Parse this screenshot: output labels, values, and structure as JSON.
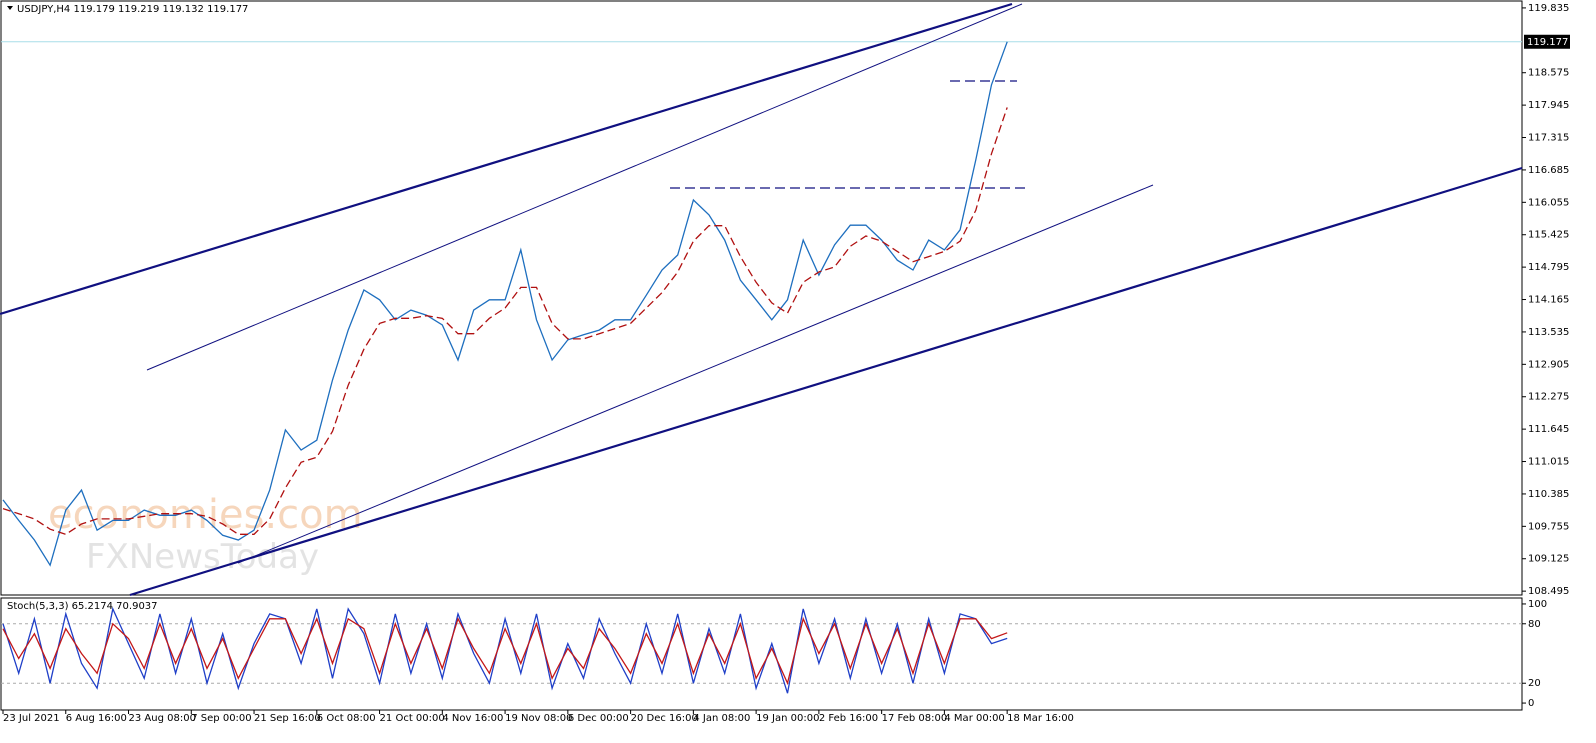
{
  "chart_data": [
    {
      "type": "line",
      "title": "USDJPY,H4  119.179 119.219 119.132 119.177",
      "watermark": [
        "economies.com",
        "FXNewsToday"
      ],
      "categories": [
        "23 Jul 2021",
        null,
        null,
        null,
        "6 Aug 16:00",
        null,
        null,
        null,
        "23 Aug 08:00",
        null,
        null,
        null,
        "7 Sep 00:00",
        null,
        null,
        null,
        "21 Sep 16:00",
        null,
        null,
        null,
        "6 Oct 08:00",
        null,
        null,
        null,
        "21 Oct 00:00",
        null,
        null,
        null,
        "4 Nov 16:00",
        null,
        null,
        null,
        "19 Nov 08:00",
        null,
        null,
        null,
        "6 Dec 00:00",
        null,
        null,
        null,
        "20 Dec 16:00",
        null,
        null,
        null,
        "4 Jan 08:00",
        null,
        null,
        null,
        "19 Jan 00:00",
        null,
        null,
        null,
        "2 Feb 16:00",
        null,
        null,
        null,
        "17 Feb 08:00",
        null,
        null,
        null,
        "4 Mar 00:00",
        null,
        null,
        null,
        "18 Mar 16:00"
      ],
      "series": [
        {
          "color": "#1e6fbf",
          "values": [
            110.27,
            109.87,
            109.49,
            109.0,
            110.07,
            110.46,
            109.68,
            109.87,
            109.87,
            110.07,
            109.97,
            109.97,
            110.07,
            109.87,
            109.58,
            109.49,
            109.68,
            110.46,
            111.63,
            111.24,
            111.43,
            112.6,
            113.57,
            114.35,
            114.16,
            113.77,
            113.96,
            113.86,
            113.67,
            112.99,
            113.96,
            114.16,
            114.16,
            115.13,
            113.77,
            112.99,
            113.38,
            113.48,
            113.57,
            113.77,
            113.77,
            114.25,
            114.74,
            115.03,
            116.1,
            115.81,
            115.32,
            114.54,
            114.16,
            113.77,
            114.16,
            115.32,
            114.64,
            115.23,
            115.61,
            115.61,
            115.32,
            114.93,
            114.74,
            115.32,
            115.13,
            115.52,
            116.88,
            118.34,
            119.177
          ]
        },
        {
          "color": "#b01010",
          "dashed": true,
          "values": [
            110.1,
            110.0,
            109.9,
            109.7,
            109.6,
            109.8,
            109.9,
            109.9,
            109.9,
            109.95,
            110.0,
            110.0,
            110.0,
            109.95,
            109.8,
            109.6,
            109.6,
            109.9,
            110.5,
            111.0,
            111.1,
            111.6,
            112.5,
            113.2,
            113.7,
            113.8,
            113.8,
            113.85,
            113.8,
            113.5,
            113.5,
            113.8,
            114.0,
            114.4,
            114.4,
            113.7,
            113.4,
            113.4,
            113.5,
            113.6,
            113.7,
            114.0,
            114.3,
            114.7,
            115.3,
            115.6,
            115.6,
            115.0,
            114.5,
            114.1,
            113.9,
            114.5,
            114.7,
            114.8,
            115.2,
            115.4,
            115.3,
            115.1,
            114.9,
            115.0,
            115.1,
            115.3,
            115.9,
            117.0,
            117.9
          ]
        }
      ],
      "last_price": 119.177,
      "ylim": [
        108.42,
        119.95
      ],
      "yticks": [
        119.835,
        118.575,
        117.945,
        117.315,
        116.685,
        116.055,
        115.425,
        114.795,
        114.165,
        113.535,
        112.905,
        112.275,
        111.645,
        111.015,
        110.385,
        109.755,
        109.125,
        108.495
      ]
    },
    {
      "type": "line",
      "title": "Stoch(5,3,3) 65.2174 70.9037",
      "series": [
        {
          "color": "#1f3fc8",
          "values": [
            80,
            30,
            85,
            20,
            90,
            40,
            15,
            95,
            60,
            25,
            90,
            30,
            85,
            20,
            70,
            15,
            60,
            90,
            85,
            40,
            95,
            25,
            95,
            70,
            20,
            90,
            30,
            80,
            25,
            90,
            50,
            20,
            85,
            30,
            90,
            15,
            60,
            25,
            85,
            50,
            20,
            80,
            30,
            90,
            20,
            75,
            30,
            90,
            15,
            60,
            10,
            95,
            40,
            85,
            25,
            85,
            30,
            80,
            20,
            85,
            30,
            90,
            85,
            60,
            65.2174
          ]
        },
        {
          "color": "#c41818",
          "values": [
            75,
            45,
            70,
            35,
            75,
            50,
            30,
            80,
            65,
            35,
            80,
            40,
            75,
            35,
            65,
            25,
            55,
            85,
            85,
            50,
            85,
            40,
            85,
            75,
            30,
            80,
            40,
            75,
            35,
            85,
            55,
            30,
            75,
            40,
            80,
            25,
            55,
            35,
            75,
            55,
            30,
            70,
            40,
            80,
            30,
            70,
            40,
            80,
            25,
            55,
            20,
            85,
            50,
            80,
            35,
            80,
            40,
            75,
            30,
            80,
            40,
            85,
            85,
            65,
            70.9037
          ]
        }
      ],
      "levels": [
        80,
        20
      ],
      "ylim": [
        -7,
        106
      ],
      "yticks": [
        100,
        80,
        20,
        0
      ]
    }
  ]
}
